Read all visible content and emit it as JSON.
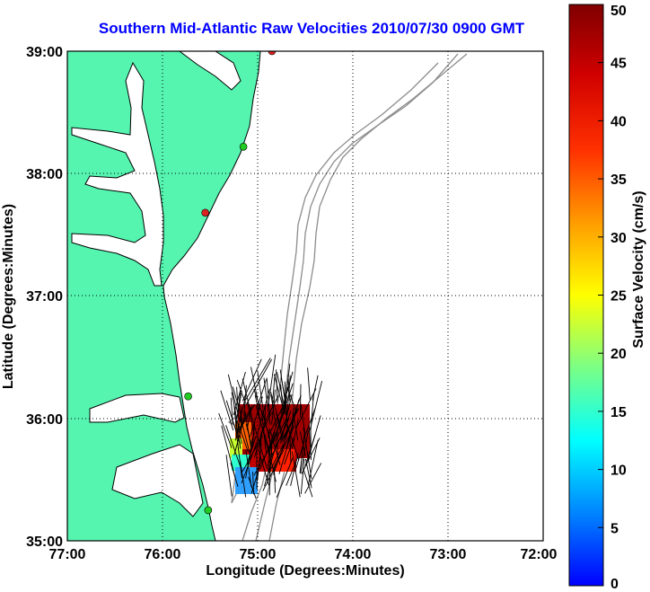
{
  "title": "Southern Mid-Atlantic Raw Velocities 2010/07/30 0900 GMT",
  "axes": {
    "xlabel": "Longitude (Degrees:Minutes)",
    "ylabel": "Latitude (Degrees:Minutes)",
    "x_ticks": [
      "77:00",
      "76:00",
      "75:00",
      "74:00",
      "73:00",
      "72:00"
    ],
    "y_ticks": [
      "39:00",
      "38:00",
      "37:00",
      "36:00",
      "35:00"
    ],
    "x_range_deg_east": [
      -77,
      -72
    ],
    "y_range_deg_north": [
      35,
      39
    ],
    "grid": "dotted"
  },
  "colorbar": {
    "label": "Surface Velocity (cm/s)",
    "ticks": [
      "50",
      "45",
      "40",
      "35",
      "30",
      "25",
      "20",
      "15",
      "10",
      "5",
      "0"
    ],
    "range": [
      0,
      50
    ],
    "colormap": "jet"
  },
  "colors": {
    "land": "#55f5b0",
    "bathymetry": "#8c8c8c",
    "coastline": "#000000",
    "title": "#0000ff",
    "station_green": "#22cc22",
    "station_red": "#dd2222"
  },
  "stations": [
    {
      "lon": -74.85,
      "lat": 39.0,
      "status": "red"
    },
    {
      "lon": -75.15,
      "lat": 38.22,
      "status": "green"
    },
    {
      "lon": -75.55,
      "lat": 37.68,
      "status": "red"
    },
    {
      "lon": -75.73,
      "lat": 36.18,
      "status": "green"
    },
    {
      "lon": -75.52,
      "lat": 35.25,
      "status": "green"
    }
  ],
  "velocity_field": {
    "description_level": "surface current vectors off Cape Hatteras",
    "dominant_speed_cm_s": 45,
    "direction": "northward"
  }
}
